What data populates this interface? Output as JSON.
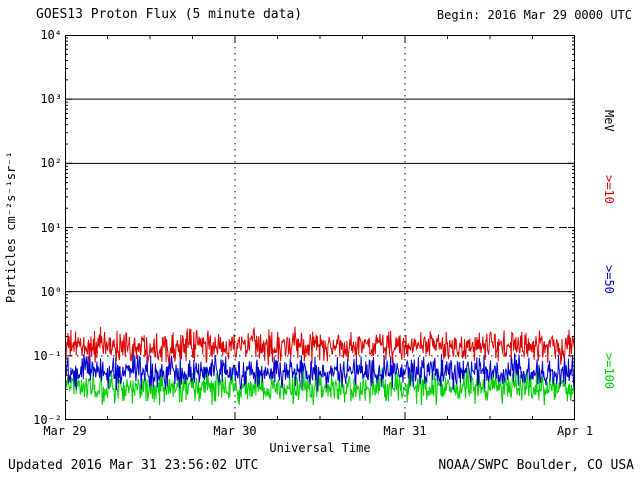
{
  "header": {
    "title": "GOES13 Proton Flux (5 minute data)",
    "begin": "Begin: 2016 Mar 29 0000 UTC"
  },
  "footer": {
    "updated": "Updated 2016 Mar 31 23:56:02 UTC",
    "credit": "NOAA/SWPC Boulder, CO USA"
  },
  "chart_data": {
    "type": "line",
    "title": "GOES13 Proton Flux (5 minute data)",
    "xlabel": "Universal Time",
    "ylabel": "Particles cm⁻²s⁻¹sr⁻¹",
    "y_scale": "log",
    "y_log_range": [
      -2,
      4
    ],
    "y_tick_labels": [
      "10⁴",
      "10³",
      "10²",
      "10¹",
      "10⁰",
      "10⁻¹",
      "10⁻²"
    ],
    "x_tick_labels": [
      "Mar 29",
      "Mar 30",
      "Mar 31",
      "Apr 1"
    ],
    "duration_days": 3,
    "sample_minutes": 5,
    "unit_label": "MeV",
    "grid_vertical_days": [
      1,
      2
    ],
    "reference_lines": [
      {
        "value": 1000,
        "style": "solid"
      },
      {
        "value": 100,
        "style": "solid"
      },
      {
        "value": 10,
        "style": "dashed"
      },
      {
        "value": 1,
        "style": "solid"
      },
      {
        "value": 0.1,
        "style": "dotted"
      }
    ],
    "series": [
      {
        "name": ">=10",
        "unit": "MeV",
        "color": "#dd0000",
        "baseline": 0.14,
        "min": 0.07,
        "max": 0.42
      },
      {
        "name": ">=50",
        "unit": "MeV",
        "color": "#0000cc",
        "baseline": 0.055,
        "min": 0.028,
        "max": 0.125
      },
      {
        "name": ">=100",
        "unit": "MeV",
        "color": "#00d000",
        "baseline": 0.031,
        "min": 0.017,
        "max": 0.066
      }
    ]
  }
}
